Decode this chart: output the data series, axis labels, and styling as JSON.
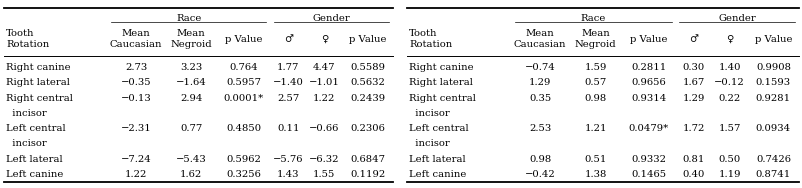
{
  "table1": {
    "rows": [
      [
        "Right canine",
        "2.73",
        "3.23",
        "0.764",
        "1.77",
        "4.47",
        "0.5589"
      ],
      [
        "Right lateral",
        "−0.35",
        "−1.64",
        "0.5957",
        "−1.40",
        "−1.01",
        "0.5632"
      ],
      [
        "Right central",
        "−0.13",
        "2.94",
        "0.0001*",
        "2.57",
        "1.22",
        "0.2439"
      ],
      [
        "  incisor",
        "",
        "",
        "",
        "",
        "",
        ""
      ],
      [
        "Left central",
        "−2.31",
        "0.77",
        "0.4850",
        "0.11",
        "−0.66",
        "0.2306"
      ],
      [
        "  incisor",
        "",
        "",
        "",
        "",
        "",
        ""
      ],
      [
        "Left lateral",
        "−7.24",
        "−5.43",
        "0.5962",
        "−5.76",
        "−6.32",
        "0.6847"
      ],
      [
        "Left canine",
        "1.22",
        "1.62",
        "0.3256",
        "1.43",
        "1.55",
        "0.1192"
      ]
    ]
  },
  "table2": {
    "rows": [
      [
        "Right canine",
        "−0.74",
        "1.59",
        "0.2811",
        "0.30",
        "1.40",
        "0.9908"
      ],
      [
        "Right lateral",
        "1.29",
        "0.57",
        "0.9656",
        "1.67",
        "−0.12",
        "0.1593"
      ],
      [
        "Right central",
        "0.35",
        "0.98",
        "0.9314",
        "1.29",
        "0.22",
        "0.9281"
      ],
      [
        "  incisor",
        "",
        "",
        "",
        "",
        "",
        ""
      ],
      [
        "Left central",
        "2.53",
        "1.21",
        "0.0479*",
        "1.72",
        "1.57",
        "0.0934"
      ],
      [
        "  incisor",
        "",
        "",
        "",
        "",
        "",
        ""
      ],
      [
        "Left lateral",
        "0.98",
        "0.51",
        "0.9332",
        "0.81",
        "0.50",
        "0.7426"
      ],
      [
        "Left canine",
        "−0.42",
        "1.38",
        "0.1465",
        "0.40",
        "1.19",
        "0.8741"
      ]
    ]
  },
  "col_headers": [
    "Tooth\nRotation",
    "Mean\nCaucasian",
    "Mean\nNegroid",
    "p Value",
    "♂",
    "♀",
    "p Value"
  ],
  "race_cols": [
    1,
    3
  ],
  "gender_cols": [
    4,
    6
  ],
  "bg_color": "#ffffff",
  "fontsize": 7.2,
  "small_fontsize": 7.2
}
